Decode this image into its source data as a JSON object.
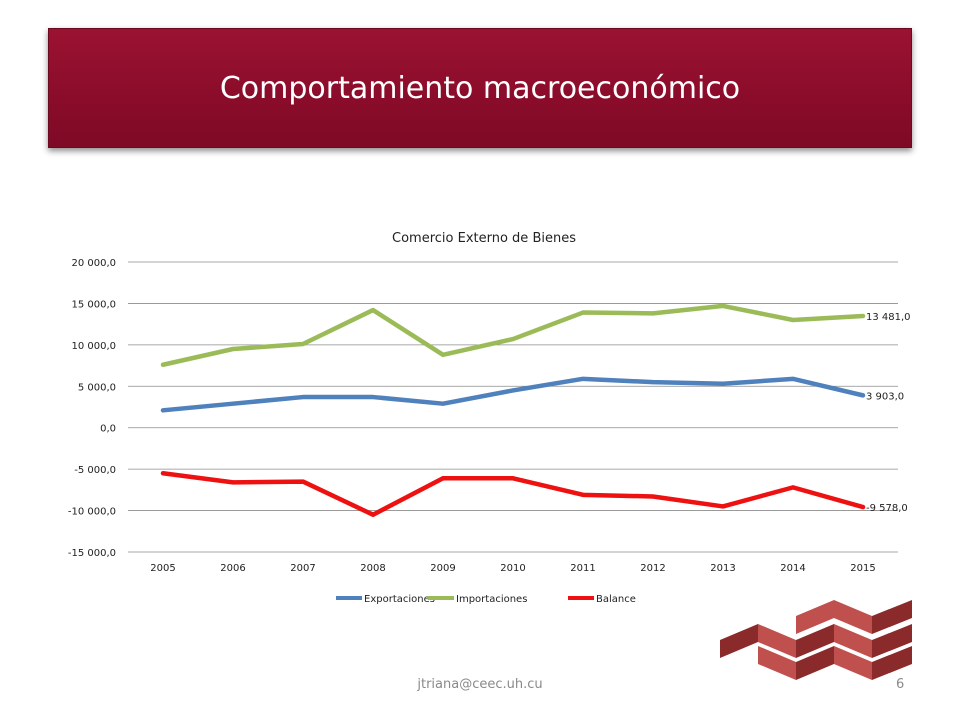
{
  "slide": {
    "title": "Comportamiento macroeconómico",
    "footer_email": "jtriana@ceec.uh.cu",
    "page_number": "6"
  },
  "colors": {
    "banner": "#8a0c2a",
    "Exportaciones": "#4f81bd",
    "Importaciones": "#9bbb59",
    "Balance": "#ee1111",
    "logo_light": "#c0504d",
    "logo_dark": "#8b2a2a"
  },
  "chart_data": {
    "type": "line",
    "title": "Comercio Externo de Bienes",
    "xlabel": "",
    "ylabel": "",
    "ylim": [
      -15000,
      20000
    ],
    "yticks": [
      20000,
      15000,
      10000,
      5000,
      0,
      -5000,
      -10000,
      -15000
    ],
    "ytick_labels": [
      "20 000,0",
      "15 000,0",
      "10 000,0",
      "5 000,0",
      "0,0",
      "-5 000,0",
      "-10 000,0",
      "-15 000,0"
    ],
    "categories": [
      "2005",
      "2006",
      "2007",
      "2008",
      "2009",
      "2010",
      "2011",
      "2012",
      "2013",
      "2014",
      "2015"
    ],
    "grid": true,
    "legend": "bottom",
    "series": [
      {
        "name": "Exportaciones",
        "values": [
          2100,
          2900,
          3700,
          3700,
          2900,
          4500,
          5900,
          5500,
          5300,
          5900,
          3903
        ],
        "end_label": "3 903,0"
      },
      {
        "name": "Importaciones",
        "values": [
          7600,
          9500,
          10100,
          14200,
          8800,
          10700,
          13900,
          13800,
          14700,
          13000,
          13481
        ],
        "end_label": "13 481,0"
      },
      {
        "name": "Balance",
        "values": [
          -5500,
          -6600,
          -6500,
          -10500,
          -6100,
          -6100,
          -8100,
          -8300,
          -9500,
          -7200,
          -9578
        ],
        "end_label": "-9 578,0"
      }
    ]
  }
}
